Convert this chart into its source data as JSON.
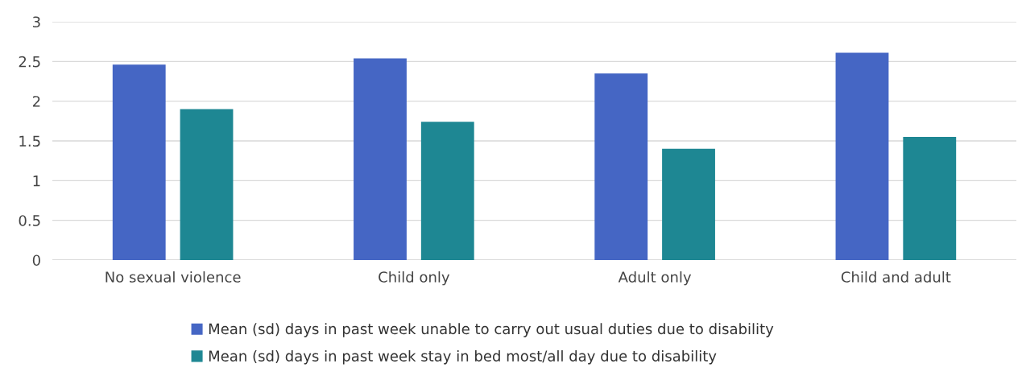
{
  "chart_data": {
    "type": "bar",
    "categories": [
      "No sexual violence",
      "Child only",
      "Adult only",
      "Child and adult"
    ],
    "series": [
      {
        "name": "Mean (sd) days in past week unable to carry out usual duties due to disability",
        "color": "#4566c4",
        "values": [
          2.46,
          2.54,
          2.35,
          2.61
        ]
      },
      {
        "name": "Mean (sd) days in past week stay in bed most/all day due to disability",
        "color": "#1e8793",
        "values": [
          1.9,
          1.74,
          1.4,
          1.55
        ]
      }
    ],
    "ylim": [
      0,
      3
    ],
    "yticks": [
      0,
      0.5,
      1,
      1.5,
      2,
      2.5,
      3
    ],
    "grid": "y",
    "legend": "bottom"
  }
}
